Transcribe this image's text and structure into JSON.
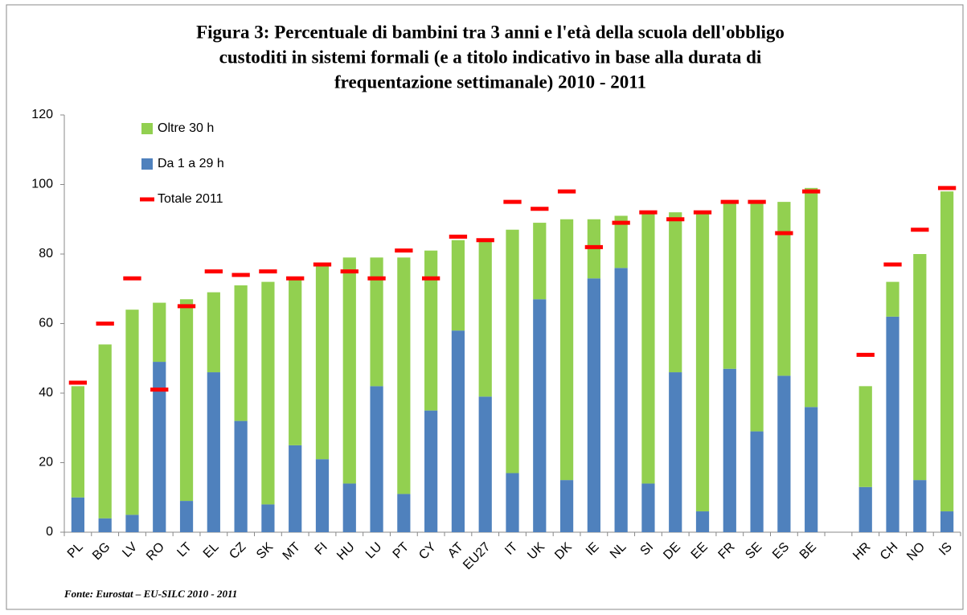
{
  "chart_data": {
    "type": "stacked_bar",
    "title": [
      "Figura 3: Percentuale di bambini tra 3 anni e l'età della scuola dell'obbligo",
      "custoditi in sistemi formali (e a titolo indicativo in base alla durata di",
      "frequentazione settimanale) 2010 - 2011"
    ],
    "source": "Fonte: Eurostat – EU-SILC 2010 - 2011",
    "categories": [
      "PL",
      "BG",
      "LV",
      "RO",
      "LT",
      "EL",
      "CZ",
      "SK",
      "MT",
      "FI",
      "HU",
      "LU",
      "PT",
      "CY",
      "AT",
      "EU27",
      "IT",
      "UK",
      "DK",
      "IE",
      "NL",
      "SI",
      "DE",
      "EE",
      "FR",
      "SE",
      "ES",
      "BE",
      null,
      "HR",
      "CH",
      "NO",
      "IS"
    ],
    "series": [
      {
        "name": "Oltre 30 h",
        "color": "#92d050",
        "kind": "bar",
        "values": [
          32,
          50,
          59,
          17,
          58,
          23,
          39,
          64,
          48,
          56,
          65,
          37,
          68,
          46,
          26,
          45,
          70,
          22,
          75,
          17,
          15,
          78,
          46,
          86,
          48,
          66,
          50,
          63,
          null,
          29,
          10,
          65,
          92
        ]
      },
      {
        "name": "Da 1 a 29 h",
        "color": "#4f81bd",
        "kind": "bar",
        "values": [
          10,
          4,
          5,
          49,
          9,
          46,
          32,
          8,
          25,
          21,
          14,
          42,
          11,
          35,
          58,
          39,
          17,
          67,
          15,
          73,
          76,
          14,
          46,
          6,
          47,
          29,
          45,
          36,
          null,
          13,
          62,
          15,
          6
        ]
      },
      {
        "name": "Totale 2011",
        "color": "#ff0000",
        "kind": "marker",
        "values": [
          43,
          60,
          73,
          41,
          65,
          75,
          74,
          75,
          73,
          77,
          75,
          73,
          81,
          73,
          85,
          84,
          95,
          93,
          98,
          82,
          89,
          92,
          90,
          92,
          95,
          95,
          86,
          98,
          null,
          51,
          77,
          87,
          99
        ]
      }
    ],
    "ylim": [
      0,
      120
    ],
    "yticks": [
      0,
      20,
      40,
      60,
      80,
      100,
      120
    ],
    "grid": false,
    "legend": "top-left"
  }
}
